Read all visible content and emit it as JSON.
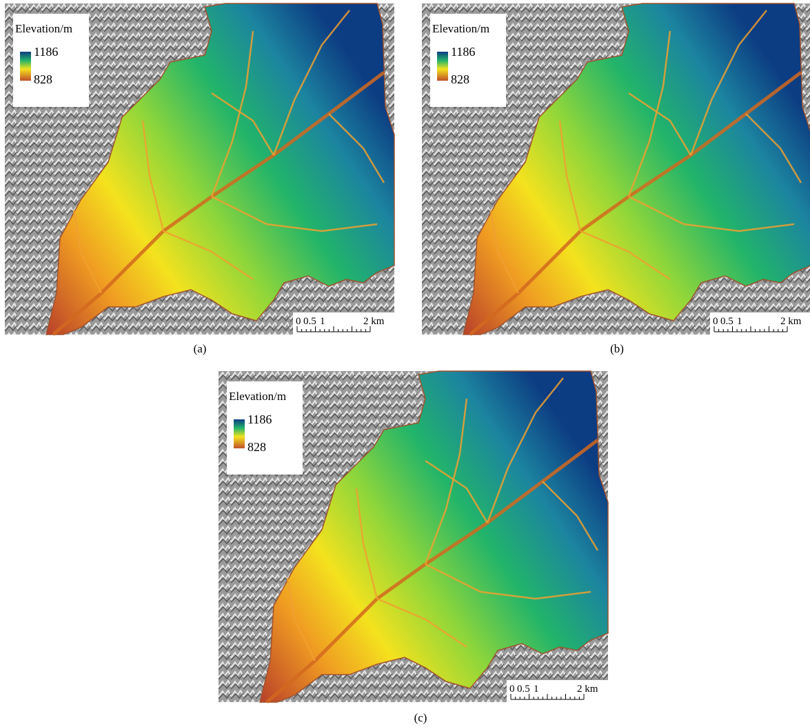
{
  "panels": [
    {
      "legend": {
        "title": "Elevation/m",
        "max": 1186,
        "min": 828
      },
      "scale": [
        "0",
        "0.5",
        "1",
        "2 km"
      ],
      "caption": "(a)"
    },
    {
      "legend": {
        "title": "Elevation/m",
        "max": 1186,
        "min": 828
      },
      "scale": [
        "0",
        "0.5",
        "1",
        "2 km"
      ],
      "caption": "(b)"
    },
    {
      "legend": {
        "title": "Elevation/m",
        "max": 1186,
        "min": 828
      },
      "scale": [
        "0",
        "0.5",
        "1",
        "2 km"
      ],
      "caption": "(c)"
    }
  ]
}
